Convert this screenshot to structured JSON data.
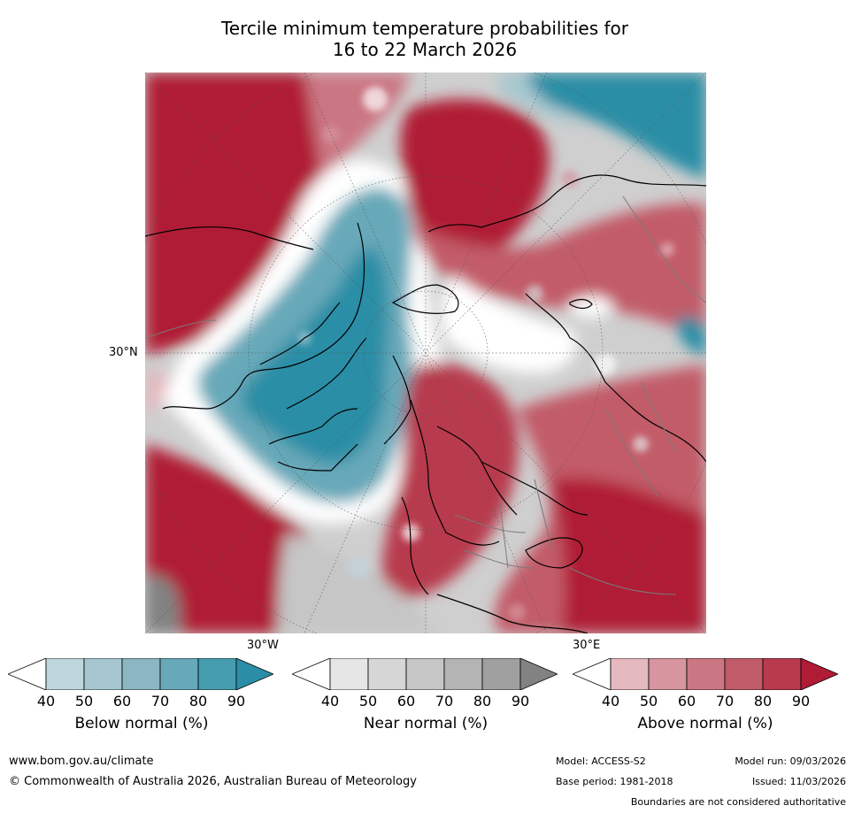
{
  "title": {
    "line1": "Tercile minimum temperature probabilities for",
    "line2": "16 to 22 March 2026"
  },
  "map": {
    "lat_label": "30°N",
    "lon_label_left": "30°W",
    "lon_label_right": "30°E"
  },
  "legends": [
    {
      "label": "Below normal (%)",
      "ticks": [
        "40",
        "50",
        "60",
        "70",
        "80",
        "90"
      ],
      "colors": [
        "#ffffff",
        "#bfd6dd",
        "#a6c7cf",
        "#8bb6c2",
        "#68a9b9",
        "#469caf",
        "#2b8ea6"
      ]
    },
    {
      "label": "Near normal (%)",
      "ticks": [
        "40",
        "50",
        "60",
        "70",
        "80",
        "90"
      ],
      "colors": [
        "#ffffff",
        "#e6e6e6",
        "#d6d6d6",
        "#c6c6c6",
        "#b4b4b4",
        "#a0a0a0",
        "#828282"
      ]
    },
    {
      "label": "Above normal (%)",
      "ticks": [
        "40",
        "50",
        "60",
        "70",
        "80",
        "90"
      ],
      "colors": [
        "#ffffff",
        "#e4b9bf",
        "#d6959f",
        "#cb7783",
        "#c25b69",
        "#b83a4d",
        "#b01b36"
      ]
    }
  ],
  "footer": {
    "website": "www.bom.gov.au/climate",
    "copyright": "© Commonwealth of Australia 2026, Australian Bureau of Meteorology",
    "model": "Model: ACCESS-S2",
    "model_run": "Model run: 09/03/2026",
    "base_period": "Base period: 1981-2018",
    "issued": "Issued: 11/03/2026",
    "disclaimer": "Boundaries are not considered authoritative"
  }
}
